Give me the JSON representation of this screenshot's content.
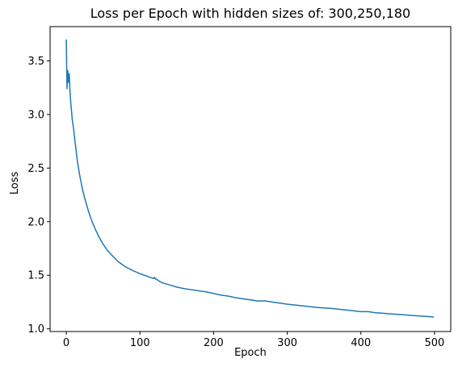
{
  "chart_data": {
    "type": "line",
    "title": "Loss per Epoch with hidden sizes of: 300,250,180",
    "xlabel": "Epoch",
    "ylabel": "Loss",
    "xlim": [
      -22,
      522
    ],
    "ylim": [
      0.975,
      3.82
    ],
    "xticks": [
      0,
      100,
      200,
      300,
      400,
      500
    ],
    "xtick_labels": [
      "0",
      "100",
      "200",
      "300",
      "400",
      "500"
    ],
    "yticks": [
      1.0,
      1.5,
      2.0,
      2.5,
      3.0,
      3.5
    ],
    "ytick_labels": [
      "1.0",
      "1.5",
      "2.0",
      "2.5",
      "3.0",
      "3.5"
    ],
    "grid": false,
    "legend": "none",
    "series": [
      {
        "color": "#1f77b4",
        "x": [
          0,
          1,
          2,
          3,
          4,
          5,
          6,
          8,
          10,
          12,
          15,
          18,
          20,
          22,
          25,
          30,
          35,
          40,
          45,
          50,
          55,
          60,
          70,
          80,
          90,
          100,
          110,
          118,
          120,
          121,
          123,
          125,
          130,
          140,
          150,
          160,
          170,
          180,
          185,
          190,
          200,
          210,
          220,
          230,
          240,
          250,
          260,
          270,
          280,
          290,
          300,
          320,
          340,
          360,
          380,
          400,
          410,
          420,
          430,
          440,
          450,
          460,
          470,
          480,
          490,
          499
        ],
        "y": [
          3.7,
          3.24,
          3.41,
          3.3,
          3.38,
          3.22,
          3.12,
          2.96,
          2.86,
          2.74,
          2.57,
          2.44,
          2.37,
          2.3,
          2.22,
          2.1,
          2.0,
          1.92,
          1.85,
          1.79,
          1.74,
          1.7,
          1.63,
          1.58,
          1.545,
          1.515,
          1.49,
          1.47,
          1.48,
          1.465,
          1.462,
          1.45,
          1.43,
          1.41,
          1.39,
          1.375,
          1.365,
          1.355,
          1.35,
          1.345,
          1.33,
          1.315,
          1.305,
          1.29,
          1.28,
          1.27,
          1.26,
          1.26,
          1.25,
          1.24,
          1.23,
          1.215,
          1.2,
          1.19,
          1.175,
          1.16,
          1.16,
          1.15,
          1.145,
          1.14,
          1.135,
          1.13,
          1.125,
          1.12,
          1.115,
          1.11
        ]
      }
    ]
  }
}
